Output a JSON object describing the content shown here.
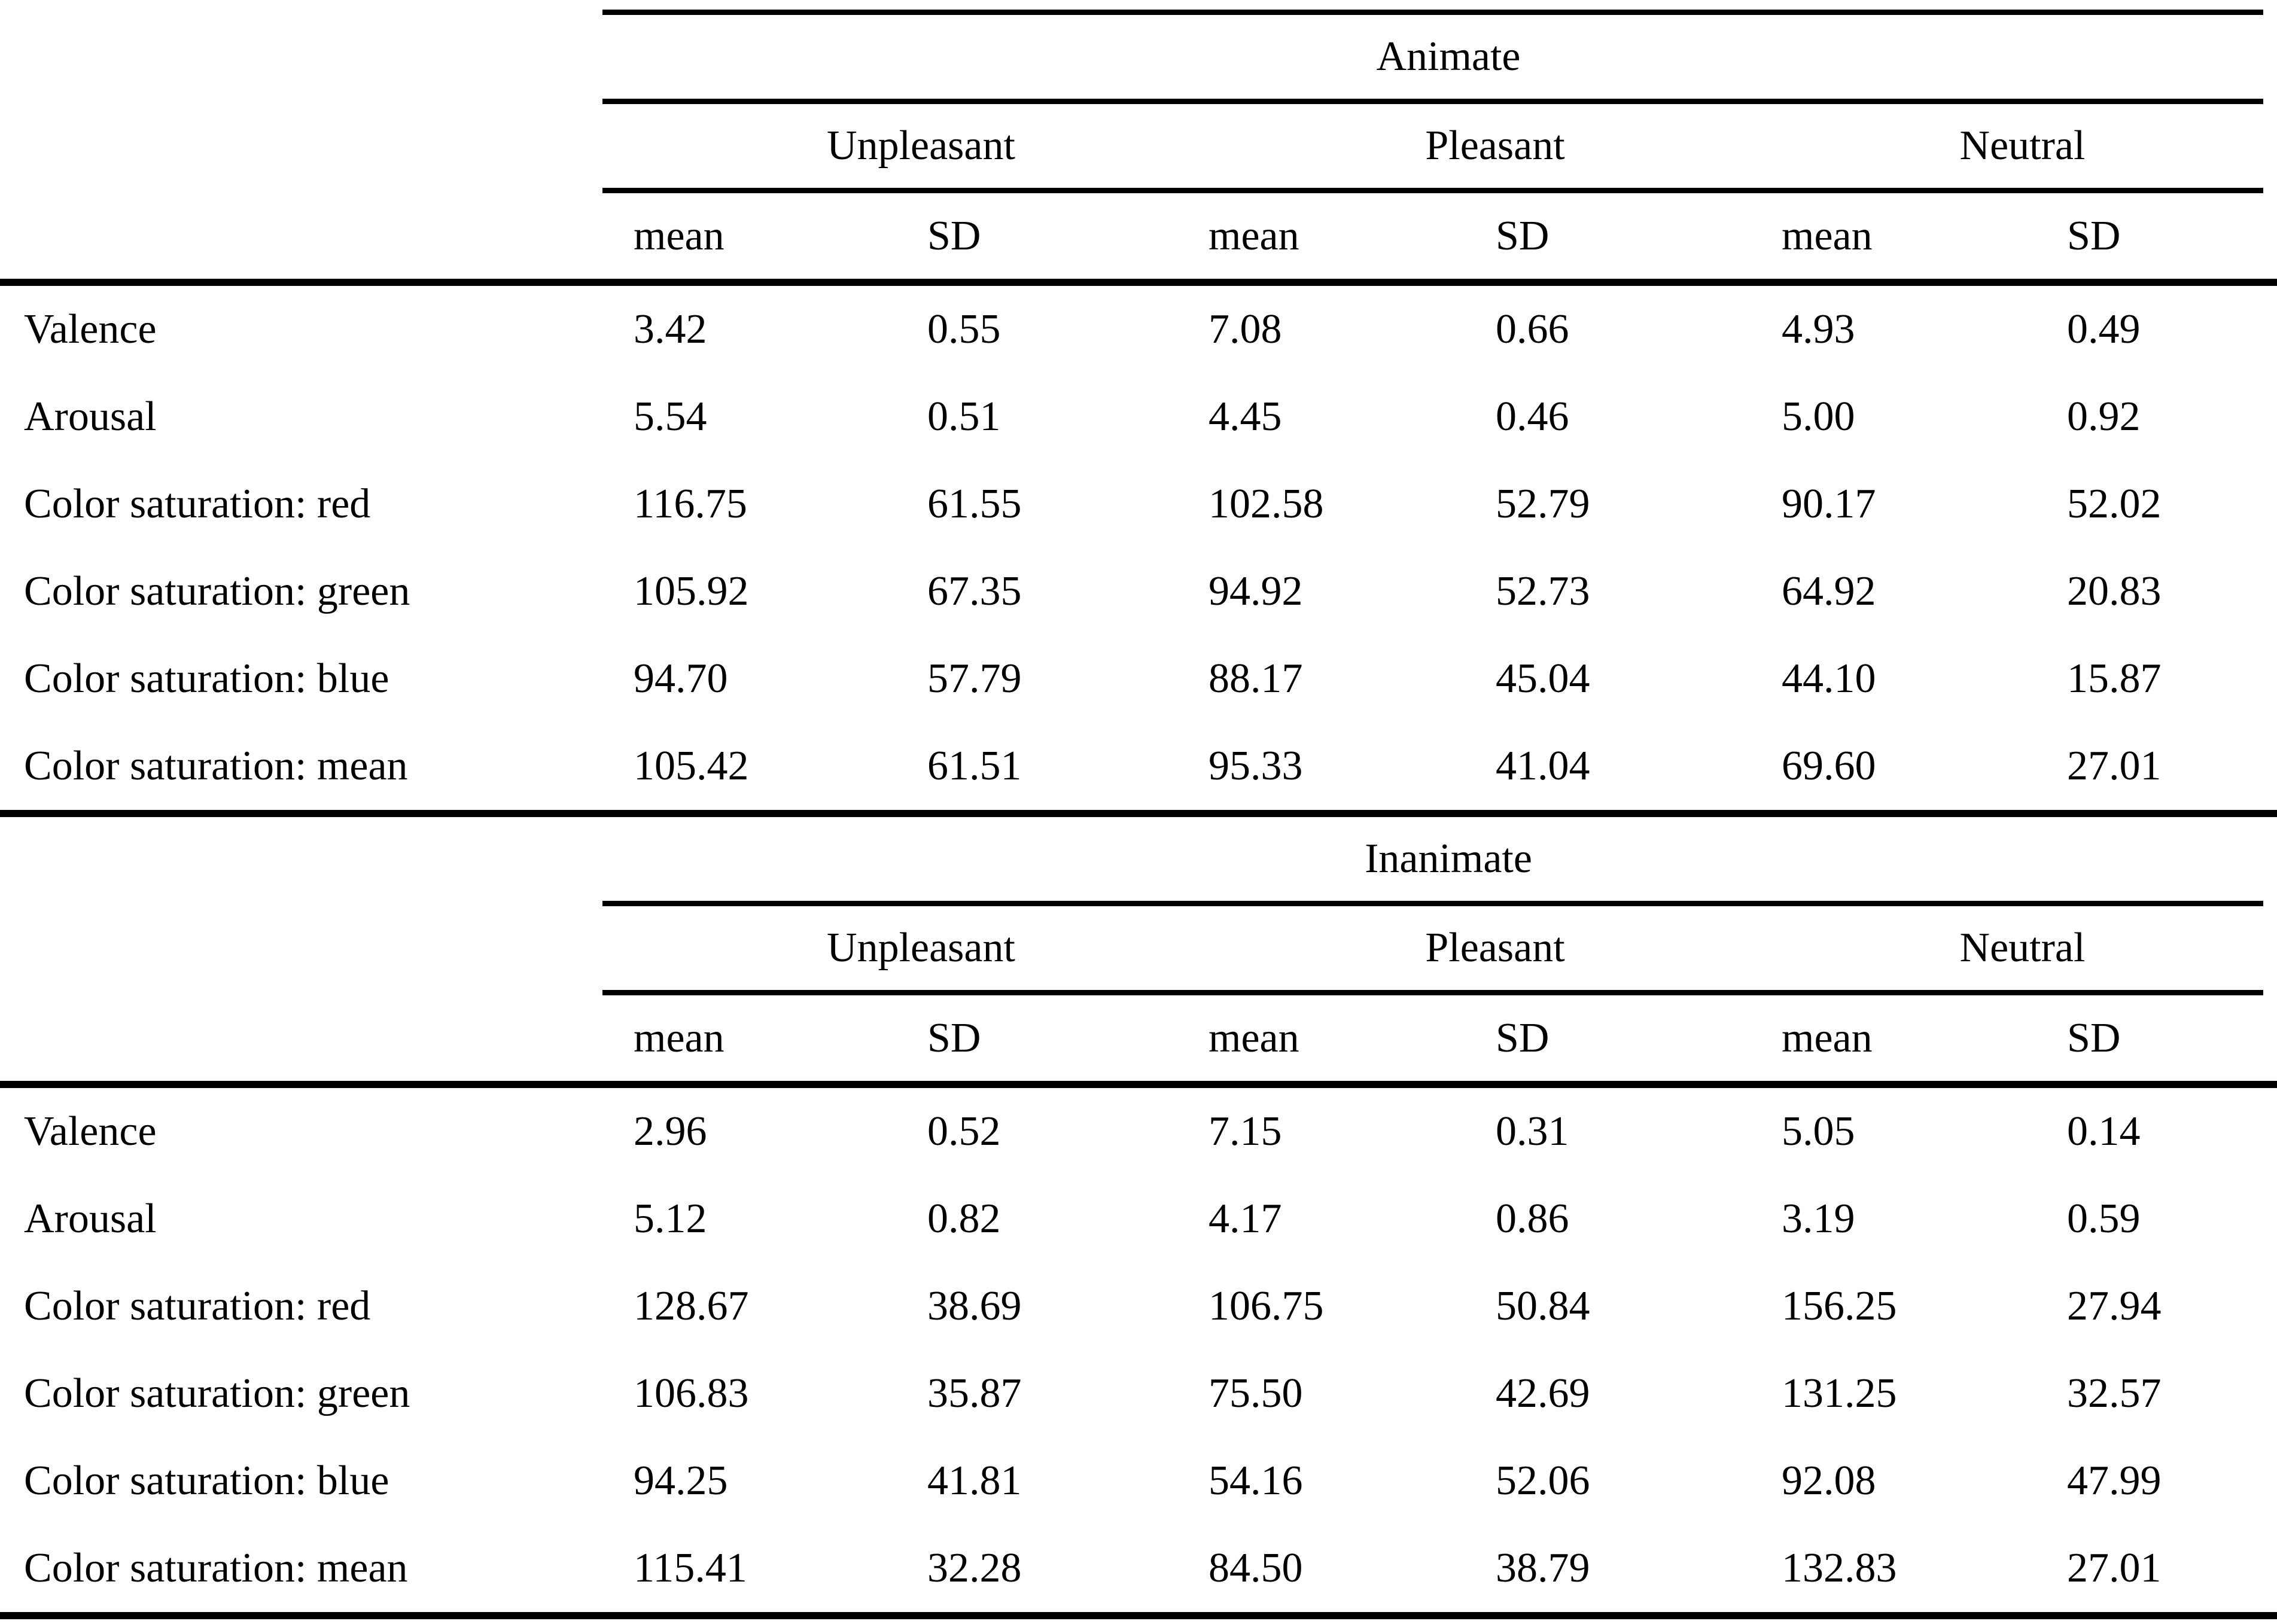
{
  "colors": {
    "text": "#000000",
    "background": "#ffffff",
    "rule": "#000000"
  },
  "table": {
    "sections": [
      {
        "group_label": "Animate",
        "categories": [
          "Unpleasant",
          "Pleasant",
          "Neutral"
        ],
        "stat_headers": [
          "mean",
          "SD",
          "mean",
          "SD",
          "mean",
          "SD"
        ],
        "rows": [
          {
            "label": "Valence",
            "values": [
              "3.42",
              "0.55",
              "7.08",
              "0.66",
              "4.93",
              "0.49"
            ]
          },
          {
            "label": "Arousal",
            "values": [
              "5.54",
              "0.51",
              "4.45",
              "0.46",
              "5.00",
              "0.92"
            ]
          },
          {
            "label": "Color saturation: red",
            "values": [
              "116.75",
              "61.55",
              "102.58",
              "52.79",
              "90.17",
              "52.02"
            ]
          },
          {
            "label": "Color saturation: green",
            "values": [
              "105.92",
              "67.35",
              "94.92",
              "52.73",
              "64.92",
              "20.83"
            ]
          },
          {
            "label": "Color saturation: blue",
            "values": [
              "94.70",
              "57.79",
              "88.17",
              "45.04",
              "44.10",
              "15.87"
            ]
          },
          {
            "label": "Color saturation: mean",
            "values": [
              "105.42",
              "61.51",
              "95.33",
              "41.04",
              "69.60",
              "27.01"
            ]
          }
        ]
      },
      {
        "group_label": "Inanimate",
        "categories": [
          "Unpleasant",
          "Pleasant",
          "Neutral"
        ],
        "stat_headers": [
          "mean",
          "SD",
          "mean",
          "SD",
          "mean",
          "SD"
        ],
        "rows": [
          {
            "label": "Valence",
            "values": [
              "2.96",
              "0.52",
              "7.15",
              "0.31",
              "5.05",
              "0.14"
            ]
          },
          {
            "label": "Arousal",
            "values": [
              "5.12",
              "0.82",
              "4.17",
              "0.86",
              "3.19",
              "0.59"
            ]
          },
          {
            "label": "Color saturation: red",
            "values": [
              "128.67",
              "38.69",
              "106.75",
              "50.84",
              "156.25",
              "27.94"
            ]
          },
          {
            "label": "Color saturation: green",
            "values": [
              "106.83",
              "35.87",
              "75.50",
              "42.69",
              "131.25",
              "32.57"
            ]
          },
          {
            "label": "Color saturation: blue",
            "values": [
              "94.25",
              "41.81",
              "54.16",
              "52.06",
              "92.08",
              "47.99"
            ]
          },
          {
            "label": "Color saturation: mean",
            "values": [
              "115.41",
              "32.28",
              "84.50",
              "38.79",
              "132.83",
              "27.01"
            ]
          }
        ]
      }
    ]
  }
}
